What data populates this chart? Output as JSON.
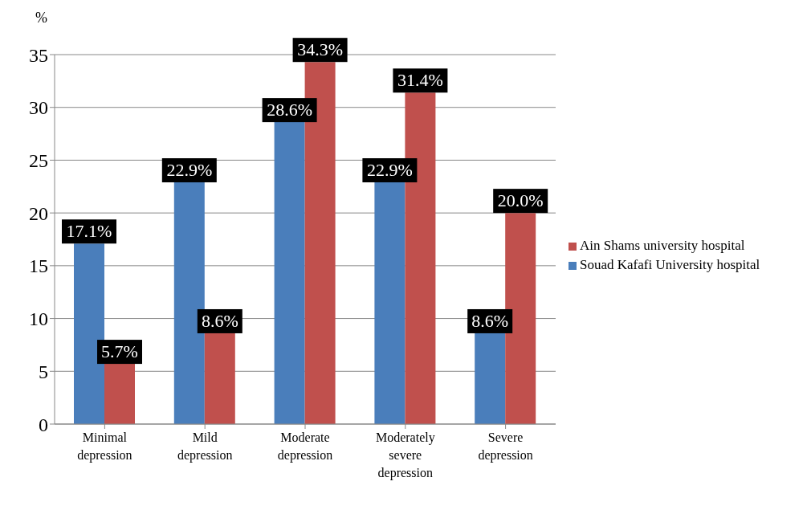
{
  "chart_data": {
    "type": "bar",
    "ylabel": "%",
    "categories": [
      "Minimal depression",
      "Mild depression",
      "Moderate depression",
      "Moderately severe depression",
      "Severe depression"
    ],
    "series": [
      {
        "name": "Souad Kafafi University hospital",
        "color": "#4a7ebb",
        "values": [
          17.1,
          22.9,
          28.6,
          22.9,
          8.6
        ],
        "value_labels": [
          "17.1%",
          "22.9%",
          "28.6%",
          "22.9%",
          "8.6%"
        ]
      },
      {
        "name": "Ain Shams university hospital",
        "color": "#c0504d",
        "values": [
          5.7,
          8.6,
          34.3,
          31.4,
          20.0
        ],
        "value_labels": [
          "5.7%",
          "8.6%",
          "34.3%",
          "31.4%",
          "20.0%"
        ]
      }
    ],
    "ylim": [
      0,
      35
    ],
    "yticks": [
      0,
      5,
      10,
      15,
      20,
      25,
      30,
      35
    ],
    "grid": "y",
    "legend": "right"
  }
}
